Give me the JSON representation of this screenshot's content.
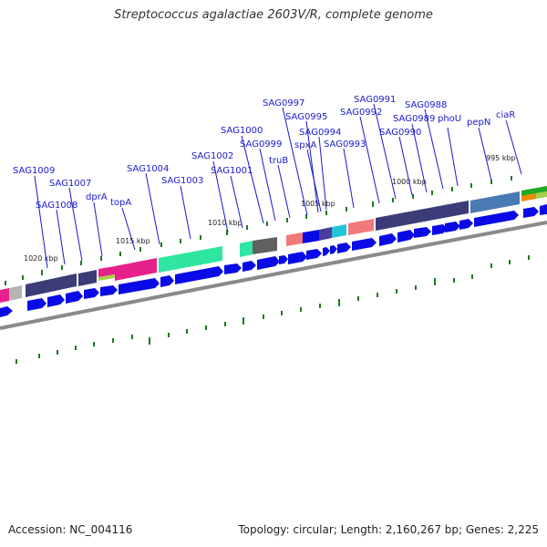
{
  "title": "Streptococcus agalactiae 2603V/R, complete genome",
  "footer": {
    "accession": "Accession: NC_004116",
    "topology": "Topology: circular; Length: 2,160,267 bp; Genes: 2,225"
  },
  "colors": {
    "gene_label": "#1a1acc",
    "cds_arrow": "#0a0ae6",
    "backbone": "#8a8a8a",
    "tick": "#1e7a1e"
  },
  "kbp_labels": [
    "1020 kbp",
    "1015 kbp",
    "1010 kbp",
    "1005 kbp",
    "1000 kbp",
    "995 kbp"
  ],
  "gene_labels": [
    "SAG1009",
    "SAG1008",
    "SAG1007",
    "dprA",
    "topA",
    "SAG1004",
    "SAG1003",
    "SAG1002",
    "SAG1001",
    "SAG1000",
    "SAG0999",
    "truB",
    "SAG0997",
    "SAG0995",
    "spxA",
    "SAG0994",
    "SAG0993",
    "SAG0992",
    "SAG0991",
    "SAG0990",
    "SAG0989",
    "SAG0988",
    "phoU",
    "pepN",
    "ciaR"
  ]
}
